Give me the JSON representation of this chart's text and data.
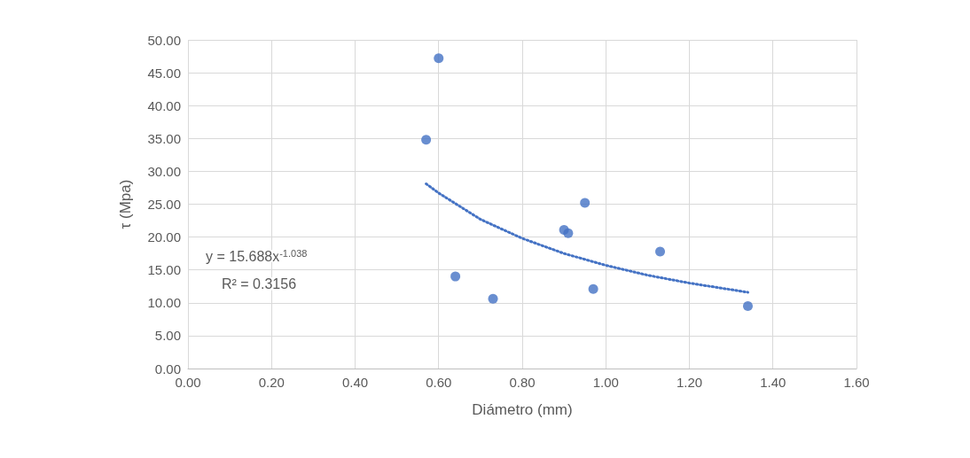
{
  "chart_data": {
    "type": "scatter",
    "xlabel": "Diámetro (mm)",
    "ylabel": "τ (Mpa)",
    "series": [
      {
        "color": "#4472c4",
        "marker": "circle",
        "x": [
          0.57,
          0.6,
          0.64,
          0.73,
          0.9,
          0.91,
          0.95,
          0.97,
          1.13,
          1.34
        ],
        "values": [
          34.8,
          47.2,
          14.0,
          10.6,
          21.1,
          20.6,
          25.2,
          12.1,
          17.8,
          9.5
        ]
      },
      {
        "type": "line",
        "color": "#4472c4",
        "marker": "none",
        "line_style": "dotted",
        "x": [
          0.57,
          0.6,
          0.7,
          0.8,
          0.9,
          1.0,
          1.1,
          1.2,
          1.34
        ],
        "values": [
          28.1,
          26.7,
          22.7,
          19.8,
          17.5,
          15.7,
          14.2,
          13.0,
          11.6
        ]
      }
    ],
    "annotations": [
      "y = 15.688x$^{-1.038}$",
      "R² = 0.3156"
    ],
    "xlim": [
      0,
      1.6
    ],
    "xticks": [
      {
        "value": 0,
        "label": "0.00"
      },
      {
        "value": 0.2,
        "label": "0.20"
      },
      {
        "value": 0.4,
        "label": "0.40"
      },
      {
        "value": 0.6,
        "label": "0.60"
      },
      {
        "value": 0.8,
        "label": "0.80"
      },
      {
        "value": 1.0,
        "label": "1.00"
      },
      {
        "value": 1.2,
        "label": "1.20"
      },
      {
        "value": 1.4,
        "label": "1.40"
      },
      {
        "value": 1.6,
        "label": "1.60"
      }
    ],
    "ylim": [
      0,
      50
    ],
    "yticks": [
      {
        "value": 0,
        "label": "0.00"
      },
      {
        "value": 5,
        "label": "5.00"
      },
      {
        "value": 10,
        "label": "10.00"
      },
      {
        "value": 15,
        "label": "15.00"
      },
      {
        "value": 20,
        "label": "20.00"
      },
      {
        "value": 25,
        "label": "25.00"
      },
      {
        "value": 30,
        "label": "30.00"
      },
      {
        "value": 35,
        "label": "35.00"
      },
      {
        "value": 40,
        "label": "40.00"
      },
      {
        "value": 45,
        "label": "45.00"
      },
      {
        "value": 50,
        "label": "50.00"
      }
    ],
    "grid": true
  }
}
